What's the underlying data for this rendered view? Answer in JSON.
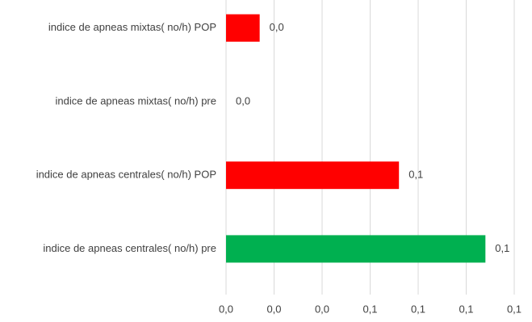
{
  "chart_data": {
    "type": "hbar",
    "categories": [
      "indice de apneas mixtas( no/h) POP",
      "indice de apneas mixtas( no/h) pre",
      "indice de apneas centrales( no/h) POP",
      "indice de apneas centrales( no/h) pre"
    ],
    "values": [
      0.014,
      0,
      0.072,
      0.108
    ],
    "value_labels": [
      "0,0",
      "0,0",
      "0,1",
      "0,1"
    ],
    "colors": [
      "#ff0000",
      "#ff0000",
      "#ff0000",
      "#00b050"
    ],
    "xlim": [
      0,
      0.12
    ],
    "xticks": [
      {
        "value": 0,
        "label": "0,0"
      },
      {
        "value": 0.02,
        "label": "0,0"
      },
      {
        "value": 0.04,
        "label": "0,0"
      },
      {
        "value": 0.06,
        "label": "0,1"
      },
      {
        "value": 0.08,
        "label": "0,1"
      },
      {
        "value": 0.1,
        "label": "0,1"
      },
      {
        "value": 0.12,
        "label": "0,1"
      }
    ],
    "grid": true
  }
}
